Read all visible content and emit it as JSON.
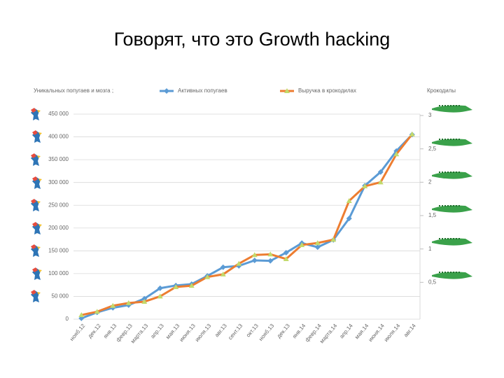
{
  "chart_data": {
    "type": "line",
    "title": "Говорят, что это Growth hacking",
    "y_label": "Уникальных попугаев и мозга ;",
    "y2_label": "Крокодилы",
    "categories": [
      "нояб.12",
      "дек.12",
      "янв.13",
      "февр.13",
      "марта.13",
      "апр.13",
      "мая.13",
      "июня.13",
      "июля.13",
      "авг.13",
      "сент.13",
      "окт.13",
      "нояб.13",
      "дек.13",
      "янв.14",
      "февр.14",
      "марта.14",
      "апр.14",
      "мая.14",
      "июня.14",
      "июля.14",
      "авг.14"
    ],
    "series": [
      {
        "name": "Активных попугаев",
        "color": "#5b9bd5",
        "marker_color": "#5b9bd5",
        "marker": "diamond",
        "values": [
          2000,
          15000,
          25000,
          31000,
          45000,
          68000,
          74000,
          77000,
          95000,
          114000,
          117000,
          129000,
          128000,
          146000,
          167000,
          158000,
          174000,
          221000,
          293000,
          323000,
          369000,
          405000
        ]
      },
      {
        "name": "Выручка в крокодилах",
        "color": "#ed7d31",
        "marker_color": "#c3d96b",
        "marker": "triangle",
        "axis": "y2",
        "values": [
          0.01,
          0.06,
          0.15,
          0.19,
          0.21,
          0.29,
          0.43,
          0.45,
          0.58,
          0.62,
          0.78,
          0.91,
          0.92,
          0.85,
          1.06,
          1.09,
          1.14,
          1.72,
          1.94,
          2.0,
          2.42,
          2.72
        ]
      }
    ],
    "ylim": [
      0,
      450000
    ],
    "yticks": [
      0,
      {
        "value": 50000,
        "label": "50 000"
      },
      {
        "value": 100000,
        "label": "100 000"
      },
      {
        "value": 150000,
        "label": "150 000"
      },
      {
        "value": 200000,
        "label": "200 000"
      },
      {
        "value": 250000,
        "label": "250 000"
      },
      {
        "value": 300000,
        "label": "300 000"
      },
      {
        "value": 350000,
        "label": "350 000"
      },
      {
        "value": 400000,
        "label": "400 000"
      },
      {
        "value": 450000,
        "label": "450 000"
      }
    ],
    "y2lim": [
      0,
      3
    ],
    "y2ticks": [
      {
        "value": 0.5,
        "label": "0,5"
      },
      1,
      {
        "value": 1.5,
        "label": "1,5"
      },
      2,
      {
        "value": 2.5,
        "label": "2,5"
      },
      3
    ],
    "grid": true
  }
}
